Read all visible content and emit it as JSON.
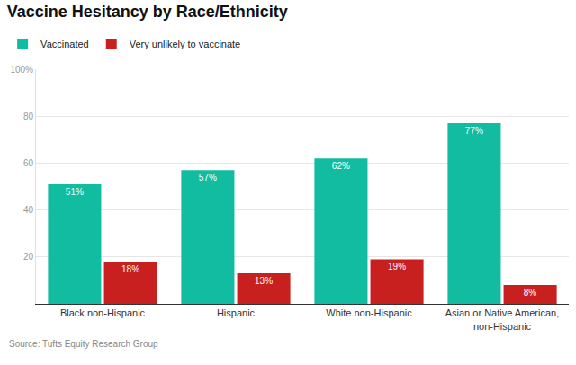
{
  "chart_data": {
    "type": "bar",
    "title": "Vaccine Hesitancy by Race/Ethnicity",
    "categories": [
      "Black non-Hispanic",
      "Hispanic",
      "White non-Hispanic",
      "Asian or Native American, non-Hispanic"
    ],
    "series": [
      {
        "name": "Vaccinated",
        "color": "#12bca0",
        "values": [
          51,
          57,
          62,
          77
        ],
        "value_labels": [
          "51%",
          "57%",
          "62%",
          "77%"
        ]
      },
      {
        "name": "Very unlikely to vaccinate",
        "color": "#c8201f",
        "values": [
          18,
          13,
          19,
          8
        ],
        "value_labels": [
          "18%",
          "13%",
          "19%",
          "8%"
        ]
      }
    ],
    "ylim": [
      0,
      100
    ],
    "yticks": [
      20,
      40,
      60,
      80,
      {
        "value": 100,
        "label": "100%"
      }
    ],
    "grid": true,
    "legend": "top-left",
    "data_labels": true,
    "annotations": [
      "Source: Tufts Equity Research Group"
    ]
  }
}
